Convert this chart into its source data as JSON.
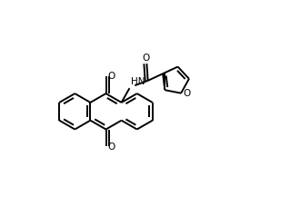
{
  "bg": "#ffffff",
  "lc": "#000000",
  "lw": 1.4,
  "fs": 7.5,
  "bl": 0.078,
  "xlim": [
    0.02,
    0.98
  ],
  "ylim": [
    0.05,
    0.98
  ]
}
